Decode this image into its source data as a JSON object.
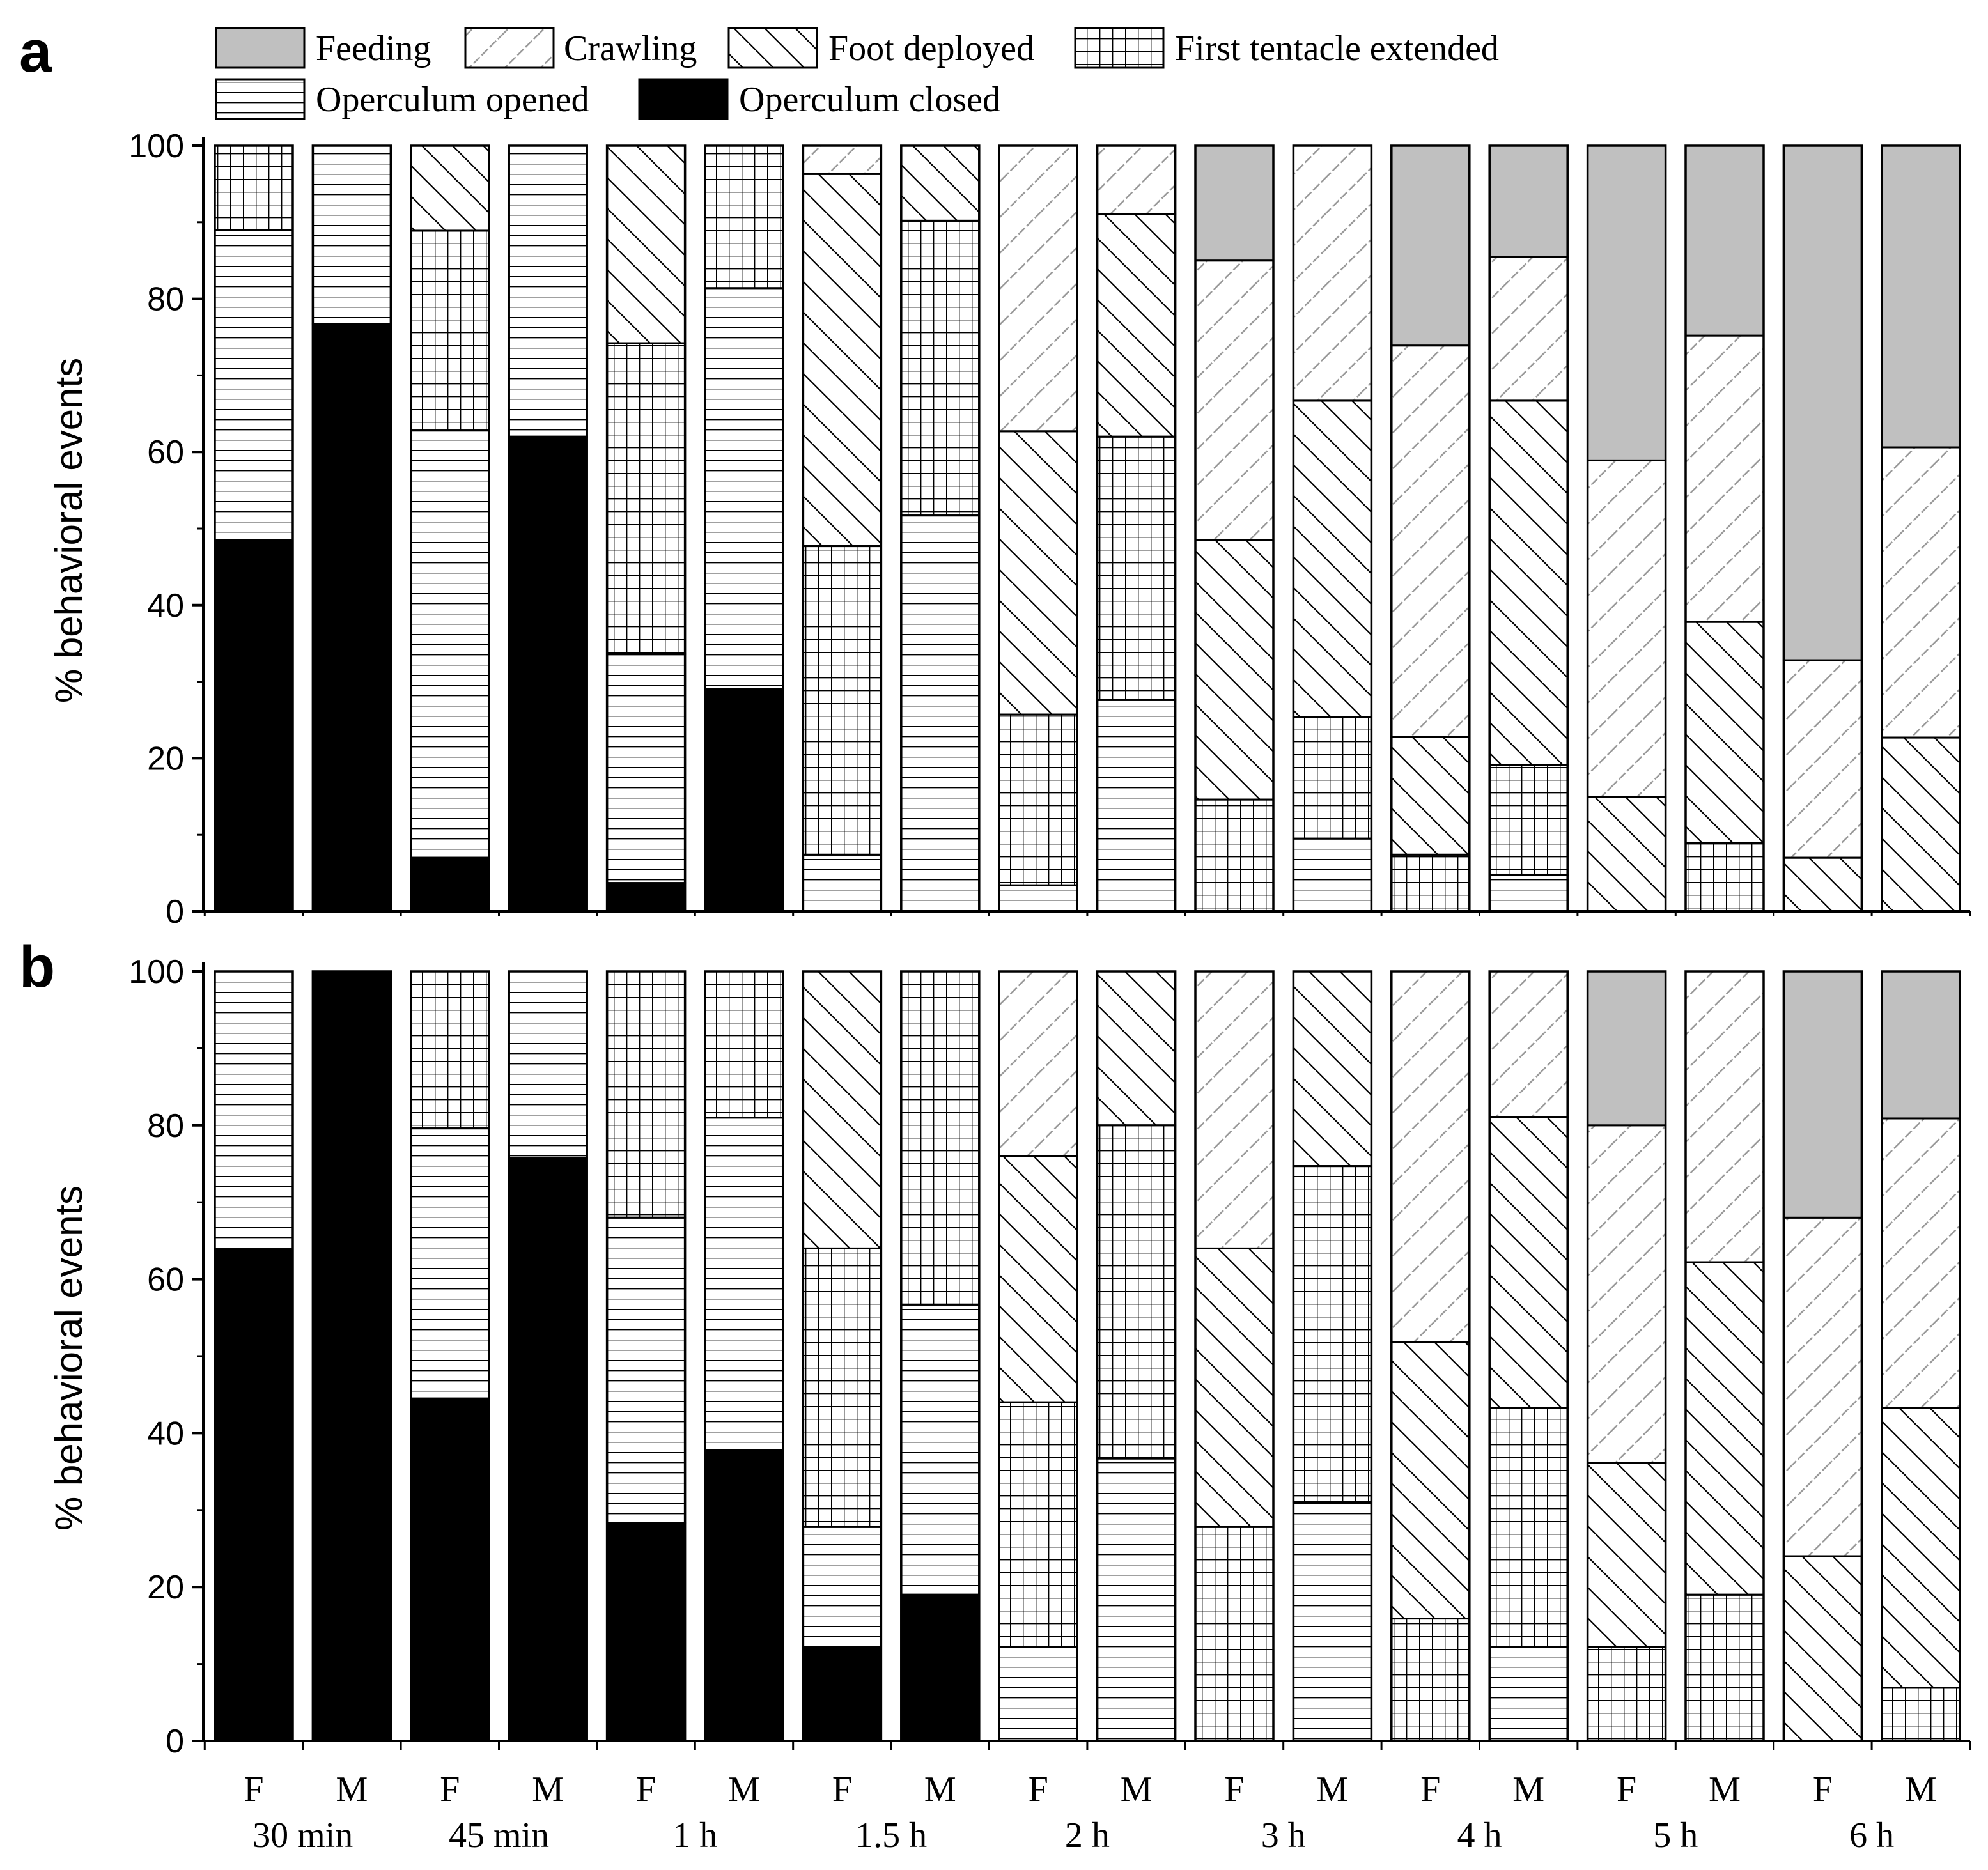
{
  "chart_data": {
    "type": "stacked-bar",
    "ylabel": "% behavioral events",
    "ylim": [
      0,
      100
    ],
    "yticks": [
      0,
      20,
      40,
      60,
      80,
      100
    ],
    "categories": [
      "F",
      "M",
      "F",
      "M",
      "F",
      "M",
      "F",
      "M",
      "F",
      "M",
      "F",
      "M",
      "F",
      "M",
      "F",
      "M",
      "F",
      "M"
    ],
    "groups": [
      "30 min",
      "45 min",
      "1 h",
      "1.5 h",
      "2 h",
      "3 h",
      "4 h",
      "5 h",
      "6 h"
    ],
    "legend": [
      {
        "key": "feeding",
        "label": "Feeding",
        "pattern": "gray"
      },
      {
        "key": "crawling",
        "label": "Crawling",
        "pattern": "light-forward-hatch"
      },
      {
        "key": "foot",
        "label": "Foot deployed",
        "pattern": "back-hatch"
      },
      {
        "key": "tentacle",
        "label": "First tentacle extended",
        "pattern": "grid"
      },
      {
        "key": "opened",
        "label": "Operculum opened",
        "pattern": "horizontal-lines"
      },
      {
        "key": "closed",
        "label": "Operculum closed",
        "pattern": "black"
      }
    ],
    "panels": [
      {
        "label": "a",
        "series": [
          {
            "name": "Operculum closed",
            "key": "closed",
            "values": [
              48.5,
              76.7,
              7,
              62,
              3.7,
              29,
              0,
              0,
              0,
              0,
              0,
              0,
              0,
              0,
              0,
              0,
              0,
              0
            ]
          },
          {
            "name": "Operculum opened",
            "key": "opened",
            "values": [
              40.5,
              23.3,
              55.8,
              38,
              29.9,
              52.4,
              7.4,
              51.7,
              3.4,
              27.6,
              0,
              9.5,
              0,
              4.8,
              0,
              0,
              0,
              0
            ]
          },
          {
            "name": "First tentacle extended",
            "key": "tentacle",
            "values": [
              11,
              0,
              26.1,
              0,
              40.6,
              18.6,
              40.3,
              38.5,
              22.3,
              34.4,
              14.6,
              15.9,
              7.4,
              14.3,
              0,
              8.9,
              0,
              0
            ]
          },
          {
            "name": "Foot deployed",
            "key": "foot",
            "values": [
              0,
              0,
              11.1,
              0,
              25.8,
              0,
              48.6,
              9.8,
              37,
              29.1,
              33.9,
              41.3,
              15.4,
              47.6,
              14.9,
              28.9,
              7,
              22.7
            ]
          },
          {
            "name": "Crawling",
            "key": "crawling",
            "values": [
              0,
              0,
              0,
              0,
              0,
              0,
              3.7,
              0,
              37.3,
              8.9,
              36.5,
              33.3,
              51.1,
              18.8,
              44,
              37.4,
              25.8,
              37.9
            ]
          },
          {
            "name": "Feeding",
            "key": "feeding",
            "values": [
              0,
              0,
              0,
              0,
              0,
              0,
              0,
              0,
              0,
              0,
              15,
              0,
              26.1,
              14.5,
              41.1,
              24.8,
              67.2,
              39.4
            ]
          }
        ]
      },
      {
        "label": "b",
        "series": [
          {
            "name": "Operculum closed",
            "key": "closed",
            "values": [
              63.9,
              100,
              44.5,
              75.7,
              28.3,
              37.8,
              12.2,
              19,
              0,
              0,
              0,
              0,
              0,
              0,
              0,
              0,
              0,
              0
            ]
          },
          {
            "name": "Operculum opened",
            "key": "opened",
            "values": [
              36.1,
              0,
              35.1,
              24.3,
              39.7,
              43.2,
              15.6,
              37.7,
              12.2,
              36.7,
              0,
              31.1,
              0,
              12.2,
              0,
              0,
              0,
              0
            ]
          },
          {
            "name": "First tentacle extended",
            "key": "tentacle",
            "values": [
              0,
              0,
              20.4,
              0,
              32,
              19,
              36.2,
              43.3,
              31.8,
              43.3,
              27.8,
              43.6,
              15.9,
              31.1,
              12.2,
              19,
              0,
              6.9
            ]
          },
          {
            "name": "Foot deployed",
            "key": "foot",
            "values": [
              0,
              0,
              0,
              0,
              0,
              0,
              36,
              0,
              32,
              20,
              36.2,
              25.3,
              35.9,
              37.8,
              23.9,
              43.2,
              24,
              36.4
            ]
          },
          {
            "name": "Crawling",
            "key": "crawling",
            "values": [
              0,
              0,
              0,
              0,
              0,
              0,
              0,
              0,
              24,
              0,
              36,
              0,
              48.2,
              18.9,
              43.9,
              37.8,
              44,
              37.6
            ]
          },
          {
            "name": "Feeding",
            "key": "feeding",
            "values": [
              0,
              0,
              0,
              0,
              0,
              0,
              0,
              0,
              0,
              0,
              0,
              0,
              0,
              0,
              20,
              0,
              32,
              19.1
            ]
          }
        ]
      }
    ]
  }
}
